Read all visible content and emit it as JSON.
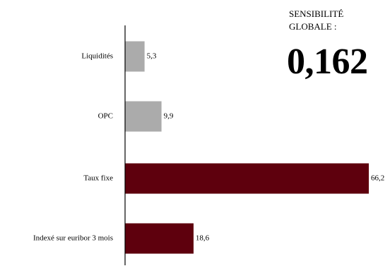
{
  "sensitivity": {
    "title_line1": "SENSIBILITÉ",
    "title_line2": "GLOBALE :",
    "value": "0,162"
  },
  "chart_data": {
    "type": "bar",
    "orientation": "horizontal",
    "categories": [
      "Liquidités",
      "OPC",
      "Taux fixe",
      "Indexé sur euribor 3 mois"
    ],
    "values": [
      5.3,
      9.9,
      66.2,
      18.6
    ],
    "value_labels": [
      "5,3",
      "9,9",
      "66,2",
      "18,6"
    ],
    "colors": [
      "#ababab",
      "#ababab",
      "#5e000d",
      "#5e000d"
    ],
    "xlim": [
      0,
      66.2
    ],
    "grid": false,
    "legend": "none"
  }
}
